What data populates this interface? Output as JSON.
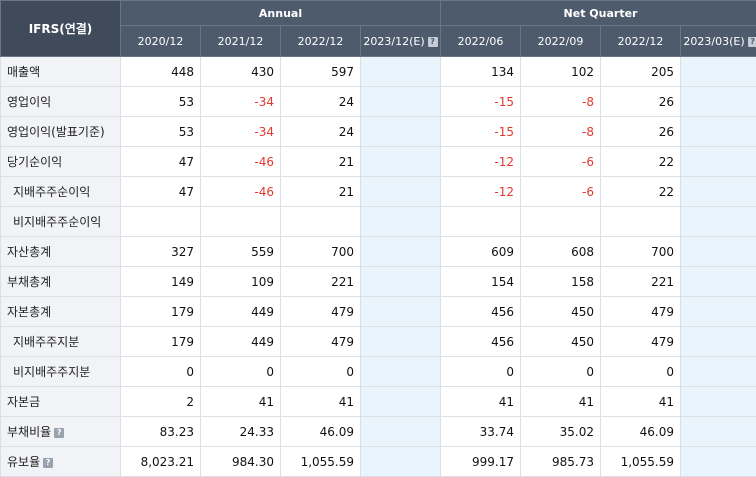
{
  "header": {
    "corner": "IFRS(연결)",
    "group_annual": "Annual",
    "group_quarter": "Net Quarter",
    "periods": [
      "2020/12",
      "2021/12",
      "2022/12",
      "2023/12(E)",
      "2022/06",
      "2022/09",
      "2022/12",
      "2023/03(E)"
    ]
  },
  "rows": [
    {
      "label": "매출액",
      "values": [
        "448",
        "430",
        "597",
        "",
        "134",
        "102",
        "205",
        ""
      ]
    },
    {
      "label": "영업이익",
      "values": [
        "53",
        "-34",
        "24",
        "",
        "-15",
        "-8",
        "26",
        ""
      ]
    },
    {
      "label": "영업이익(발표기준)",
      "values": [
        "53",
        "-34",
        "24",
        "",
        "-15",
        "-8",
        "26",
        ""
      ]
    },
    {
      "label": "당기순이익",
      "values": [
        "47",
        "-46",
        "21",
        "",
        "-12",
        "-6",
        "22",
        ""
      ]
    },
    {
      "label": "지배주주순이익",
      "values": [
        "47",
        "-46",
        "21",
        "",
        "-12",
        "-6",
        "22",
        ""
      ]
    },
    {
      "label": "비지배주주순이익",
      "values": [
        "",
        "",
        "",
        "",
        "",
        "",
        "",
        ""
      ]
    },
    {
      "label": "자산총계",
      "values": [
        "327",
        "559",
        "700",
        "",
        "609",
        "608",
        "700",
        ""
      ]
    },
    {
      "label": "부채총계",
      "values": [
        "149",
        "109",
        "221",
        "",
        "154",
        "158",
        "221",
        ""
      ]
    },
    {
      "label": "자본총계",
      "values": [
        "179",
        "449",
        "479",
        "",
        "456",
        "450",
        "479",
        ""
      ]
    },
    {
      "label": "지배주주지분",
      "values": [
        "179",
        "449",
        "479",
        "",
        "456",
        "450",
        "479",
        ""
      ]
    },
    {
      "label": "비지배주주지분",
      "values": [
        "0",
        "0",
        "0",
        "",
        "0",
        "0",
        "0",
        ""
      ]
    },
    {
      "label": "자본금",
      "values": [
        "2",
        "41",
        "41",
        "",
        "41",
        "41",
        "41",
        ""
      ]
    },
    {
      "label": "부채비율",
      "values": [
        "83.23",
        "24.33",
        "46.09",
        "",
        "33.74",
        "35.02",
        "46.09",
        ""
      ]
    },
    {
      "label": "유보율",
      "values": [
        "8,023.21",
        "984.30",
        "1,055.59",
        "",
        "999.17",
        "985.73",
        "1,055.59",
        ""
      ]
    }
  ],
  "help_icon_glyph": "?",
  "colors": {
    "header_bg": "#4d5b6d",
    "label_bg": "#f1f3f6",
    "estimate_bg": "#e9f4fc",
    "negative": "#e03a2f"
  }
}
